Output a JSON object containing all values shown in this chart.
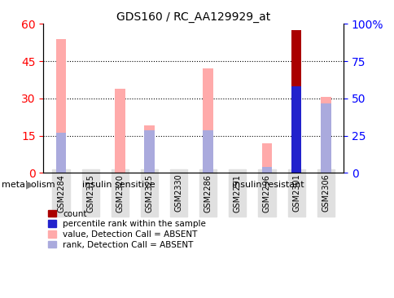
{
  "title": "GDS160 / RC_AA129929_at",
  "samples": [
    "GSM2284",
    "GSM2315",
    "GSM2320",
    "GSM2325",
    "GSM2330",
    "GSM2286",
    "GSM2291",
    "GSM2296",
    "GSM2301",
    "GSM2306"
  ],
  "value_absent": [
    54.0,
    0,
    34.0,
    19.0,
    0,
    42.0,
    0,
    12.0,
    0,
    30.5
  ],
  "rank_absent": [
    16.0,
    0,
    0,
    17.0,
    0,
    17.0,
    0,
    2.5,
    0,
    28.0
  ],
  "count_val": [
    0,
    0,
    0,
    0,
    0,
    0,
    0,
    0,
    57.5,
    0
  ],
  "percentile_val": [
    0,
    0,
    0,
    0,
    0,
    0,
    0,
    0,
    35.0,
    0
  ],
  "left_ylim": [
    0,
    60
  ],
  "right_ylim": [
    0,
    100
  ],
  "left_yticks": [
    0,
    15,
    30,
    45,
    60
  ],
  "right_yticks": [
    0,
    25,
    50,
    75,
    100
  ],
  "right_yticklabels": [
    "0",
    "25",
    "50",
    "75",
    "100%"
  ],
  "color_count": "#aa0000",
  "color_percentile": "#2222cc",
  "color_value_absent": "#ffaaaa",
  "color_rank_absent": "#aaaadd",
  "group1_label": "insulin sensitive",
  "group2_label": "insulin resistant",
  "group1_color": "#99ee99",
  "group2_color": "#55dd55",
  "group_label": "metabolism",
  "value_bar_width": 0.35,
  "rank_bar_width": 0.35,
  "count_bar_width": 0.35,
  "percentile_bar_width": 0.35,
  "bg_color": "#e0e0e0",
  "grid_color": "black",
  "grid_linestyle": "dotted",
  "grid_linewidth": 0.8,
  "grid_yvals": [
    15,
    30,
    45
  ]
}
